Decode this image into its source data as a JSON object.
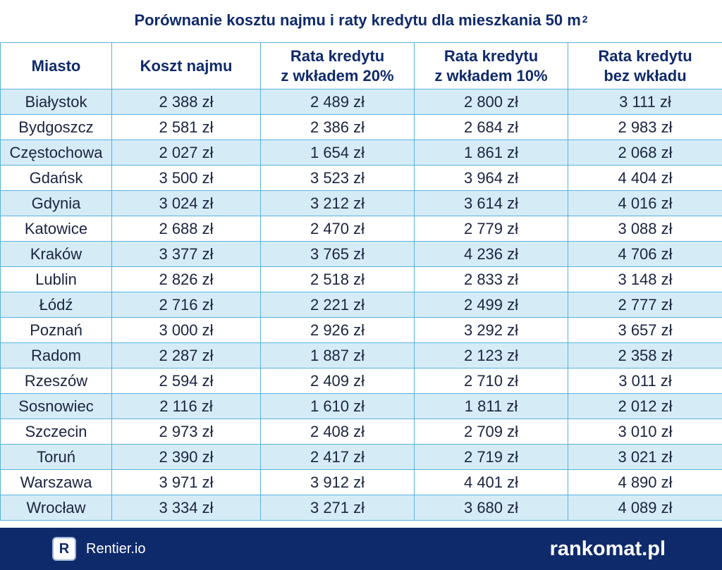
{
  "title": {
    "text": "Porównanie kosztu najmu i raty kredytu dla mieszkania 50 m",
    "sup": "2"
  },
  "table": {
    "headers": [
      {
        "line1": "Miasto",
        "line2": ""
      },
      {
        "line1": "Koszt najmu",
        "line2": ""
      },
      {
        "line1": "Rata kredytu",
        "line2": "z wkładem 20%"
      },
      {
        "line1": "Rata kredytu",
        "line2": "z wkładem 10%"
      },
      {
        "line1": "Rata kredytu",
        "line2": "bez wkładu"
      }
    ],
    "rows": [
      [
        "Białystok",
        "2 388 zł",
        "2 489 zł",
        "2 800 zł",
        "3 111 zł"
      ],
      [
        "Bydgoszcz",
        "2 581 zł",
        "2 386 zł",
        "2 684 zł",
        "2 983 zł"
      ],
      [
        "Częstochowa",
        "2 027 zł",
        "1 654 zł",
        "1 861 zł",
        "2 068 zł"
      ],
      [
        "Gdańsk",
        "3 500 zł",
        "3 523 zł",
        "3 964 zł",
        "4 404 zł"
      ],
      [
        "Gdynia",
        "3 024 zł",
        "3 212 zł",
        "3 614 zł",
        "4 016 zł"
      ],
      [
        "Katowice",
        "2 688 zł",
        "2 470 zł",
        "2 779 zł",
        "3 088 zł"
      ],
      [
        "Kraków",
        "3 377 zł",
        "3 765 zł",
        "4 236 zł",
        "4 706 zł"
      ],
      [
        "Lublin",
        "2 826 zł",
        "2 518 zł",
        "2 833 zł",
        "3 148 zł"
      ],
      [
        "Łódź",
        "2 716 zł",
        "2 221 zł",
        "2 499 zł",
        "2 777 zł"
      ],
      [
        "Poznań",
        "3 000 zł",
        "2 926 zł",
        "3 292 zł",
        "3 657 zł"
      ],
      [
        "Radom",
        "2 287 zł",
        "1 887 zł",
        "2 123 zł",
        "2 358 zł"
      ],
      [
        "Rzeszów",
        "2 594 zł",
        "2 409 zł",
        "2 710 zł",
        "3 011 zł"
      ],
      [
        "Sosnowiec",
        "2 116 zł",
        "1 610 zł",
        "1 811 zł",
        "2 012 zł"
      ],
      [
        "Szczecin",
        "2 973 zł",
        "2 408 zł",
        "2 709 zł",
        "3 010 zł"
      ],
      [
        "Toruń",
        "2 390 zł",
        "2 417 zł",
        "2 719 zł",
        "3 021 zł"
      ],
      [
        "Warszawa",
        "3 971 zł",
        "3 912 zł",
        "4 401 zł",
        "4 890 zł"
      ],
      [
        "Wrocław",
        "3 334 zł",
        "3 271 zł",
        "3 680 zł",
        "4 089 zł"
      ]
    ]
  },
  "chart_data": {
    "type": "table",
    "title": "Porównanie kosztu najmu i raty kredytu dla mieszkania 50 m²",
    "columns": [
      "Miasto",
      "Koszt najmu",
      "Rata kredytu z wkładem 20%",
      "Rata kredytu z wkładem 10%",
      "Rata kredytu bez wkładu"
    ],
    "unit": "zł",
    "categories": [
      "Białystok",
      "Bydgoszcz",
      "Częstochowa",
      "Gdańsk",
      "Gdynia",
      "Katowice",
      "Kraków",
      "Lublin",
      "Łódź",
      "Poznań",
      "Radom",
      "Rzeszów",
      "Sosnowiec",
      "Szczecin",
      "Toruń",
      "Warszawa",
      "Wrocław"
    ],
    "series": [
      {
        "name": "Koszt najmu",
        "values": [
          2388,
          2581,
          2027,
          3500,
          3024,
          2688,
          3377,
          2826,
          2716,
          3000,
          2287,
          2594,
          2116,
          2973,
          2390,
          3971,
          3334
        ]
      },
      {
        "name": "Rata kredytu z wkładem 20%",
        "values": [
          2489,
          2386,
          1654,
          3523,
          3212,
          2470,
          3765,
          2518,
          2221,
          2926,
          1887,
          2409,
          1610,
          2408,
          2417,
          3912,
          3271
        ]
      },
      {
        "name": "Rata kredytu z wkładem 10%",
        "values": [
          2800,
          2684,
          1861,
          3964,
          3614,
          2779,
          4236,
          2833,
          2499,
          3292,
          2123,
          2710,
          1811,
          2709,
          2719,
          4401,
          3680
        ]
      },
      {
        "name": "Rata kredytu bez wkładu",
        "values": [
          3111,
          2983,
          2068,
          4404,
          4016,
          3088,
          4706,
          3148,
          2777,
          3657,
          2358,
          3011,
          2012,
          3010,
          3021,
          4890,
          4089
        ]
      }
    ]
  },
  "footer": {
    "logo_letter": "R",
    "left_brand": "Rentier.io",
    "right_brand": "rankomat.pl"
  },
  "colors": {
    "title": "#0f2a6b",
    "border": "#57b2dc",
    "row_alt": "#d5ecf7",
    "footer_bg": "#0f2a6b"
  }
}
